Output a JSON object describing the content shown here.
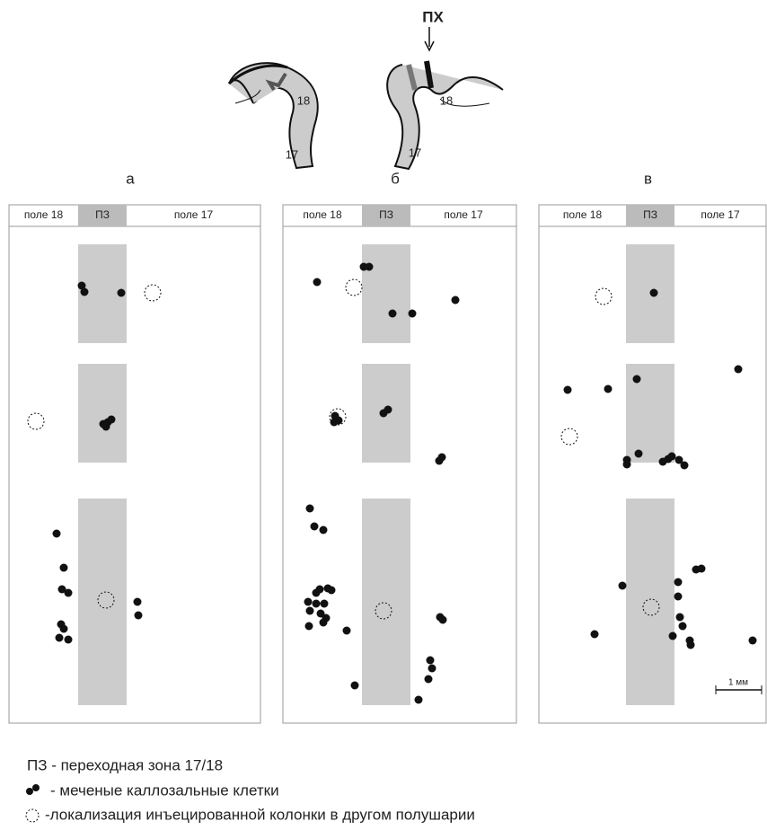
{
  "header": {
    "arrow_label": "ПХ",
    "left_labels": [
      "18",
      "17"
    ],
    "right_labels": [
      "18",
      "17"
    ]
  },
  "panels": [
    {
      "letter": "а",
      "fields": [
        "поле 18",
        "ПЗ",
        "поле 17"
      ]
    },
    {
      "letter": "б",
      "fields": [
        "поле 18",
        "ПЗ",
        "поле 17"
      ]
    },
    {
      "letter": "в",
      "fields": [
        "поле 18",
        "ПЗ",
        "поле 17"
      ]
    }
  ],
  "scale_bar": "1 мм",
  "legend": [
    "ПЗ - переходная зона 17/18",
    "- меченые каллозальные клетки",
    "-локализация инъецированной колонки в другом полушарии"
  ]
}
